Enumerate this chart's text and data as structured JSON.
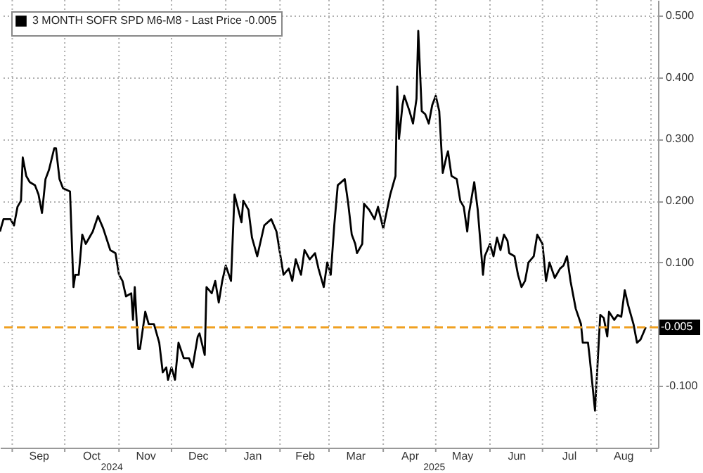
{
  "chart_data": {
    "type": "line",
    "x": [
      "2024-08-25",
      "2024-08-27",
      "2024-08-31",
      "2024-09-02",
      "2024-09-04",
      "2024-09-06",
      "2024-09-07",
      "2024-09-09",
      "2024-09-11",
      "2024-09-14",
      "2024-09-16",
      "2024-09-18",
      "2024-09-20",
      "2024-09-22",
      "2024-09-25",
      "2024-09-26",
      "2024-09-28",
      "2024-09-30",
      "2024-10-04",
      "2024-10-06",
      "2024-10-07",
      "2024-10-09",
      "2024-10-11",
      "2024-10-13",
      "2024-10-17",
      "2024-10-20",
      "2024-10-23",
      "2024-10-27",
      "2024-10-30",
      "2024-11-01",
      "2024-11-03",
      "2024-11-05",
      "2024-11-08",
      "2024-11-09",
      "2024-11-10",
      "2024-11-12",
      "2024-11-13",
      "2024-11-16",
      "2024-11-18",
      "2024-11-21",
      "2024-11-24",
      "2024-11-26",
      "2024-11-28",
      "2024-11-29",
      "2024-12-01",
      "2024-12-03",
      "2024-12-05",
      "2024-12-08",
      "2024-12-11",
      "2024-12-13",
      "2024-12-16",
      "2024-12-17",
      "2024-12-20",
      "2024-12-21",
      "2024-12-24",
      "2024-12-26",
      "2024-12-28",
      "2024-12-30",
      "2025-01-01",
      "2025-01-04",
      "2025-01-06",
      "2025-01-10",
      "2025-01-11",
      "2025-01-14",
      "2025-01-16",
      "2025-01-19",
      "2025-01-23",
      "2025-01-27",
      "2025-01-30",
      "2025-02-01",
      "2025-02-03",
      "2025-02-06",
      "2025-02-08",
      "2025-02-10",
      "2025-02-13",
      "2025-02-15",
      "2025-02-18",
      "2025-02-21",
      "2025-02-23",
      "2025-02-26",
      "2025-02-28",
      "2025-03-02",
      "2025-03-04",
      "2025-03-06",
      "2025-03-10",
      "2025-03-12",
      "2025-03-14",
      "2025-03-16",
      "2025-03-17",
      "2025-03-20",
      "2025-03-21",
      "2025-03-24",
      "2025-03-27",
      "2025-03-29",
      "2025-04-01",
      "2025-04-05",
      "2025-04-08",
      "2025-04-09",
      "2025-04-10",
      "2025-04-12",
      "2025-04-13",
      "2025-04-16",
      "2025-04-18",
      "2025-04-20",
      "2025-04-21",
      "2025-04-23",
      "2025-04-25",
      "2025-04-27",
      "2025-04-29",
      "2025-05-01",
      "2025-05-03",
      "2025-05-05",
      "2025-05-07",
      "2025-05-08",
      "2025-05-10",
      "2025-05-13",
      "2025-05-15",
      "2025-05-17",
      "2025-05-19",
      "2025-05-20",
      "2025-05-23",
      "2025-05-25",
      "2025-05-28",
      "2025-05-29",
      "2025-06-01",
      "2025-06-03",
      "2025-06-05",
      "2025-06-07",
      "2025-06-09",
      "2025-06-11",
      "2025-06-12",
      "2025-06-15",
      "2025-06-17",
      "2025-06-19",
      "2025-06-21",
      "2025-06-23",
      "2025-06-26",
      "2025-06-28",
      "2025-07-01",
      "2025-07-03",
      "2025-07-05",
      "2025-07-08",
      "2025-07-11",
      "2025-07-13",
      "2025-07-15",
      "2025-07-17",
      "2025-07-20",
      "2025-07-23",
      "2025-07-24",
      "2025-07-27",
      "2025-07-28",
      "2025-07-31",
      "2025-08-03",
      "2025-08-05",
      "2025-08-07",
      "2025-08-08",
      "2025-08-11",
      "2025-08-13",
      "2025-08-15",
      "2025-08-17",
      "2025-08-19",
      "2025-08-22",
      "2025-08-24",
      "2025-08-26",
      "2025-08-29"
    ],
    "series": [
      {
        "name": "3 MONTH SOFR SPD M6-M8 - Last Price -0.005",
        "color": "#000000",
        "values": [
          0.15,
          0.17,
          0.17,
          0.16,
          0.19,
          0.2,
          0.27,
          0.24,
          0.23,
          0.225,
          0.21,
          0.18,
          0.235,
          0.25,
          0.285,
          0.285,
          0.235,
          0.22,
          0.215,
          0.06,
          0.08,
          0.08,
          0.145,
          0.13,
          0.15,
          0.175,
          0.155,
          0.12,
          0.115,
          0.08,
          0.07,
          0.045,
          0.05,
          0.007,
          0.06,
          -0.04,
          -0.04,
          0.02,
          0.0,
          0.0,
          -0.03,
          -0.078,
          -0.07,
          -0.09,
          -0.07,
          -0.09,
          -0.03,
          -0.055,
          -0.055,
          -0.07,
          -0.02,
          -0.015,
          -0.05,
          0.06,
          0.05,
          0.07,
          0.035,
          0.07,
          0.095,
          0.07,
          0.21,
          0.165,
          0.2,
          0.185,
          0.14,
          0.11,
          0.16,
          0.17,
          0.15,
          0.115,
          0.08,
          0.09,
          0.07,
          0.105,
          0.08,
          0.12,
          0.105,
          0.115,
          0.09,
          0.06,
          0.1,
          0.08,
          0.16,
          0.225,
          0.235,
          0.195,
          0.145,
          0.13,
          0.115,
          0.13,
          0.195,
          0.185,
          0.17,
          0.19,
          0.155,
          0.21,
          0.24,
          0.385,
          0.3,
          0.355,
          0.37,
          0.345,
          0.325,
          0.365,
          0.475,
          0.345,
          0.34,
          0.325,
          0.355,
          0.37,
          0.345,
          0.245,
          0.27,
          0.28,
          0.24,
          0.235,
          0.2,
          0.19,
          0.15,
          0.18,
          0.23,
          0.185,
          0.08,
          0.11,
          0.13,
          0.11,
          0.14,
          0.12,
          0.145,
          0.135,
          0.115,
          0.11,
          0.08,
          0.06,
          0.07,
          0.1,
          0.11,
          0.145,
          0.13,
          0.07,
          0.1,
          0.075,
          0.09,
          0.095,
          0.11,
          0.07,
          0.025,
          0.0,
          -0.03,
          -0.03,
          -0.055,
          -0.14,
          0.015,
          0.01,
          -0.02,
          0.02,
          0.007,
          0.015,
          0.012,
          0.055,
          0.03,
          0.0,
          -0.03,
          -0.025,
          -0.005
        ]
      }
    ],
    "xlim": [
      "2024-08-25",
      "2025-09-05"
    ],
    "xticks": [
      {
        "value": "2024-09-01",
        "label": null
      },
      {
        "value": "2024-09-16",
        "label": "Sep"
      },
      {
        "value": "2024-10-01",
        "label": null
      },
      {
        "value": "2024-10-16",
        "label": "Oct"
      },
      {
        "value": "2024-11-01",
        "label": null
      },
      {
        "value": "2024-11-16",
        "label": "Nov"
      },
      {
        "value": "2024-12-01",
        "label": null
      },
      {
        "value": "2024-12-16",
        "label": "Dec"
      },
      {
        "value": "2025-01-01",
        "label": null
      },
      {
        "value": "2025-01-16",
        "label": "Jan"
      },
      {
        "value": "2025-02-01",
        "label": null
      },
      {
        "value": "2025-02-15",
        "label": "Feb"
      },
      {
        "value": "2025-03-01",
        "label": null
      },
      {
        "value": "2025-03-16",
        "label": "Mar"
      },
      {
        "value": "2025-04-01",
        "label": null
      },
      {
        "value": "2025-04-16",
        "label": "Apr"
      },
      {
        "value": "2025-05-01",
        "label": null
      },
      {
        "value": "2025-05-16",
        "label": "May"
      },
      {
        "value": "2025-06-01",
        "label": null
      },
      {
        "value": "2025-06-16",
        "label": "Jun"
      },
      {
        "value": "2025-07-01",
        "label": null
      },
      {
        "value": "2025-07-16",
        "label": "Jul"
      },
      {
        "value": "2025-08-01",
        "label": null
      },
      {
        "value": "2025-08-16",
        "label": "Aug"
      },
      {
        "value": "2025-09-01",
        "label": null
      }
    ],
    "ylim": [
      -0.2,
      0.525
    ],
    "yticks": [
      {
        "value": -0.1,
        "label": "-0.100"
      },
      {
        "value": 0.1,
        "label": "0.100"
      },
      {
        "value": 0.2,
        "label": "0.200"
      },
      {
        "value": 0.3,
        "label": "0.300"
      },
      {
        "value": 0.4,
        "label": "0.400"
      },
      {
        "value": 0.5,
        "label": "0.500"
      }
    ],
    "ref_lines": [
      {
        "axis": "y",
        "value": -0.005,
        "label": "-0.005",
        "color": "#f0a020",
        "line_style": "dashed"
      }
    ],
    "annotations": [
      "2024",
      "2025"
    ],
    "grid": true,
    "legend": "top left",
    "marker": "none",
    "line_style": "solid"
  }
}
